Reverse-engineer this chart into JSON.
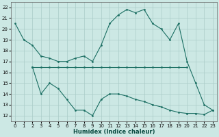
{
  "xlabel": "Humidex (Indice chaleur)",
  "bg_color": "#cce8e4",
  "grid_color": "#aaccc8",
  "line_color": "#1a6e62",
  "line_a_x": [
    0,
    1,
    2,
    3,
    4,
    5,
    6,
    7,
    8,
    9,
    10,
    11,
    12,
    13,
    14,
    15,
    16,
    17,
    18,
    19,
    20,
    21,
    22,
    23
  ],
  "line_a_y": [
    20.5,
    19.0,
    18.5,
    17.5,
    17.3,
    17.0,
    17.0,
    17.3,
    17.5,
    17.0,
    18.5,
    20.5,
    21.3,
    21.8,
    21.5,
    21.8,
    20.5,
    20.0,
    19.0,
    20.5,
    17.0,
    15.0,
    13.0,
    12.5
  ],
  "line_b_x": [
    2,
    3,
    4,
    5,
    6,
    7,
    8,
    9,
    10,
    11,
    12,
    13,
    14,
    15,
    16,
    17,
    18,
    19,
    20
  ],
  "line_b_y": [
    16.5,
    16.5,
    16.5,
    16.5,
    16.5,
    16.5,
    16.5,
    16.5,
    16.5,
    16.5,
    16.5,
    16.5,
    16.5,
    16.5,
    16.5,
    16.5,
    16.5,
    16.5,
    16.5
  ],
  "line_c_x": [
    2,
    3,
    4,
    5,
    6,
    7,
    8,
    9,
    10,
    11,
    12,
    13,
    14,
    15,
    16,
    17,
    18,
    19,
    20,
    21,
    22,
    23
  ],
  "line_c_y": [
    16.5,
    14.0,
    15.0,
    14.5,
    13.5,
    12.5,
    12.5,
    12.0,
    13.5,
    14.0,
    14.0,
    13.8,
    13.5,
    13.3,
    13.0,
    12.8,
    12.5,
    12.3,
    12.2,
    12.2,
    12.1,
    12.5
  ],
  "xlim": [
    -0.5,
    23.5
  ],
  "ylim": [
    11.5,
    22.5
  ],
  "yticks": [
    12,
    13,
    14,
    15,
    16,
    17,
    18,
    19,
    20,
    21,
    22
  ],
  "xticks": [
    0,
    1,
    2,
    3,
    4,
    5,
    6,
    7,
    8,
    9,
    10,
    11,
    12,
    13,
    14,
    15,
    16,
    17,
    18,
    19,
    20,
    21,
    22,
    23
  ]
}
